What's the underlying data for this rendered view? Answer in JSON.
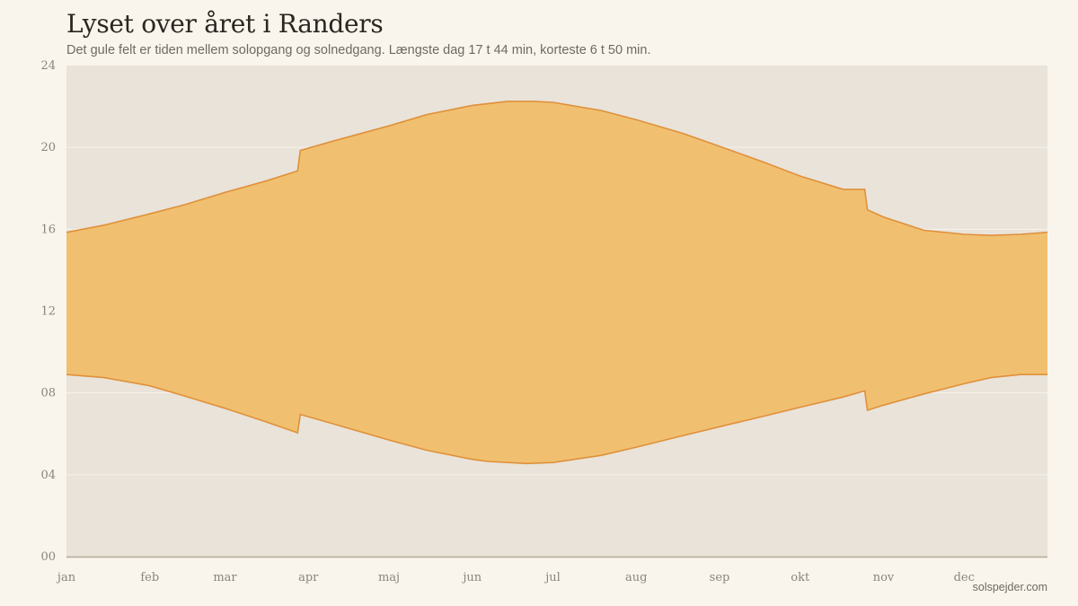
{
  "title": "Lyset over året i Randers",
  "subtitle": "Det gule felt er tiden mellem solopgang og solnedgang. Længste dag 17 t 44 min, korteste 6 t 50 min.",
  "credit": "solspejder.com",
  "colors": {
    "background": "#f9f5ed",
    "plot_background": "#e9e3d9",
    "daylight_fill": "#f0c070",
    "daylight_stroke": "#e0903a",
    "gridline": "#f7f3ec",
    "baseline": "#b3a995"
  },
  "chart_data": {
    "type": "area",
    "title": "Lyset over året i Randers",
    "subtitle": "Det gule felt er tiden mellem solopgang og solnedgang. Længste dag 17 t 44 min, korteste 6 t 50 min.",
    "ylim": [
      0,
      24
    ],
    "yticks": [
      0,
      4,
      8,
      12,
      16,
      20,
      24
    ],
    "ytick_labels": [
      "00",
      "04",
      "08",
      "12",
      "16",
      "20",
      "24"
    ],
    "xlim": [
      1,
      366
    ],
    "months": [
      {
        "label": "jan",
        "day": 1
      },
      {
        "label": "feb",
        "day": 32
      },
      {
        "label": "mar",
        "day": 60
      },
      {
        "label": "apr",
        "day": 91
      },
      {
        "label": "maj",
        "day": 121
      },
      {
        "label": "jun",
        "day": 152
      },
      {
        "label": "jul",
        "day": 182
      },
      {
        "label": "aug",
        "day": 213
      },
      {
        "label": "sep",
        "day": 244
      },
      {
        "label": "okt",
        "day": 274
      },
      {
        "label": "nov",
        "day": 305
      },
      {
        "label": "dec",
        "day": 335
      }
    ],
    "grid": true,
    "series": [
      {
        "name": "solopgang",
        "x": [
          1,
          15,
          32,
          45,
          60,
          75,
          87,
          88,
          100,
          121,
          135,
          152,
          158,
          172,
          182,
          200,
          213,
          230,
          244,
          260,
          274,
          290,
          298,
          299,
          305,
          320,
          335,
          345,
          356,
          366
        ],
        "y": [
          8.9,
          8.75,
          8.35,
          7.85,
          7.25,
          6.6,
          6.05,
          6.95,
          6.5,
          5.7,
          5.2,
          4.75,
          4.65,
          4.55,
          4.6,
          4.95,
          5.35,
          5.9,
          6.35,
          6.85,
          7.3,
          7.8,
          8.1,
          7.15,
          7.4,
          7.95,
          8.45,
          8.75,
          8.9,
          8.9
        ]
      },
      {
        "name": "solnedgang",
        "x": [
          1,
          15,
          32,
          45,
          60,
          75,
          87,
          88,
          100,
          121,
          135,
          152,
          165,
          175,
          182,
          200,
          213,
          230,
          244,
          260,
          274,
          290,
          298,
          299,
          305,
          320,
          335,
          345,
          356,
          366
        ],
        "y": [
          15.85,
          16.2,
          16.75,
          17.2,
          17.8,
          18.35,
          18.85,
          19.85,
          20.3,
          21.05,
          21.6,
          22.05,
          22.25,
          22.25,
          22.2,
          21.8,
          21.35,
          20.7,
          20.05,
          19.3,
          18.6,
          17.95,
          17.95,
          16.95,
          16.6,
          15.95,
          15.75,
          15.7,
          15.75,
          15.85
        ]
      }
    ]
  }
}
